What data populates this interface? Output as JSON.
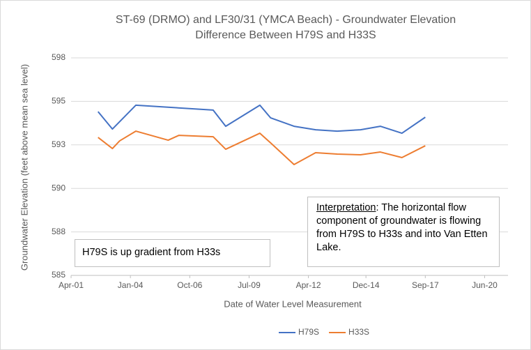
{
  "chart_data": {
    "type": "line",
    "title": [
      "ST-69 (DRMO) and LF30/31 (YMCA  Beach) - Groundwater Elevation",
      "Difference Between H79S and H33S"
    ],
    "x_label": "Date of Water Level Measurement",
    "y_label": "Groundwater Elevation (feet above mean sea level)",
    "xlim": [
      "2001-04",
      "2021-07"
    ],
    "xticks": [
      {
        "value": "2001-04",
        "label": "Apr-01"
      },
      {
        "value": "2004-01",
        "label": "Jan-04"
      },
      {
        "value": "2006-10",
        "label": "Oct-06"
      },
      {
        "value": "2009-07",
        "label": "Jul-09"
      },
      {
        "value": "2012-04",
        "label": "Apr-12"
      },
      {
        "value": "2014-12",
        "label": "Dec-14"
      },
      {
        "value": "2017-09",
        "label": "Sep-17"
      },
      {
        "value": "2020-06",
        "label": "Jun-20"
      }
    ],
    "ylim": [
      585,
      597.5
    ],
    "yticks": [
      585,
      {
        "value": 587.5,
        "label": "588"
      },
      590,
      {
        "value": 592.5,
        "label": "593"
      },
      595,
      {
        "value": 597.5,
        "label": "598"
      }
    ],
    "grid": true,
    "legend": "bottom",
    "series": [
      {
        "name": "H79S",
        "color": "#4472c4",
        "x": [
          "2002-07",
          "2003-03",
          "2004-04",
          "2007-11",
          "2008-06",
          "2010-01",
          "2010-07",
          "2011-08",
          "2012-08",
          "2013-08",
          "2014-09",
          "2015-08",
          "2016-08",
          "2017-09"
        ],
        "values": [
          594.41,
          593.41,
          594.78,
          594.5,
          593.57,
          594.78,
          594.05,
          593.57,
          593.37,
          593.29,
          593.37,
          593.57,
          593.17,
          594.09
        ]
      },
      {
        "name": "H33S",
        "color": "#ed7d31",
        "x": [
          "2002-07",
          "2003-03",
          "2003-07",
          "2004-04",
          "2005-10",
          "2006-04",
          "2007-11",
          "2008-06",
          "2010-01",
          "2010-07",
          "2011-08",
          "2012-08",
          "2013-08",
          "2014-09",
          "2015-08",
          "2016-08",
          "2017-09"
        ],
        "values": [
          592.93,
          592.29,
          592.73,
          593.29,
          592.77,
          593.05,
          592.97,
          592.25,
          593.17,
          592.61,
          591.37,
          592.05,
          591.97,
          591.93,
          592.09,
          591.77,
          592.45
        ]
      }
    ],
    "annotations": [
      {
        "text": "H79S is up gradient from H33s"
      },
      {
        "label": "Interpretation",
        "text": ":  The horizontal flow component of groundwater is flowing from H79S to H33s and into Van Etten Lake."
      }
    ]
  }
}
